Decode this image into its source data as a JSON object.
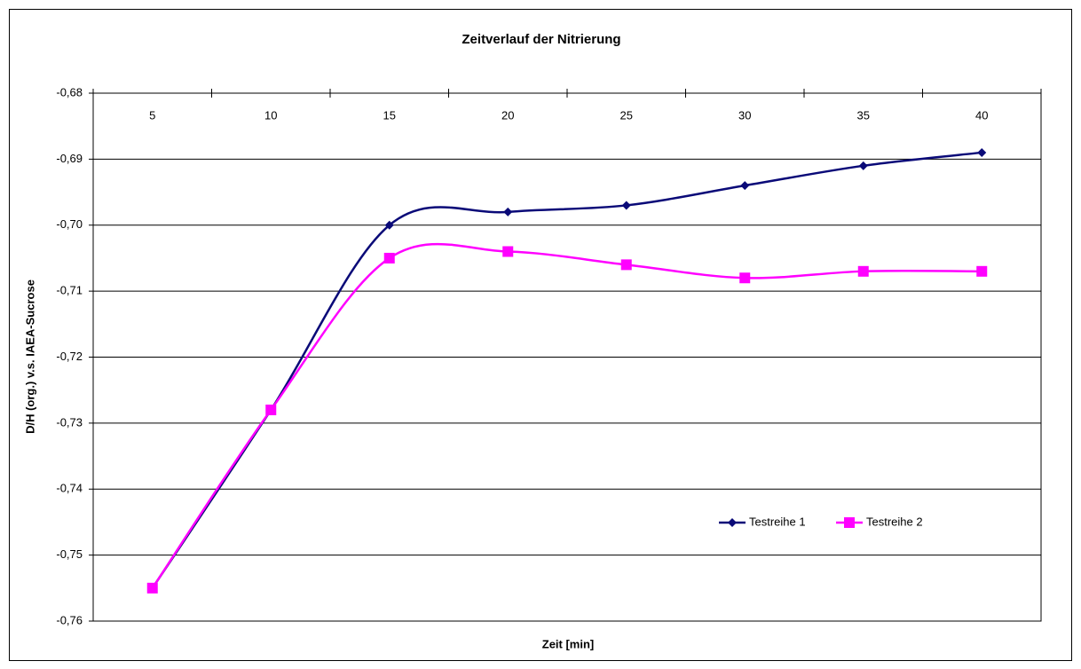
{
  "chart_data": {
    "type": "line",
    "title": "Zeitverlauf der Nitrierung",
    "xlabel": "Zeit [min]",
    "ylabel": "D/H (org.) v.s. IAEA-Sucrose",
    "categories": [
      "5",
      "10",
      "15",
      "20",
      "25",
      "30",
      "35",
      "40"
    ],
    "series": [
      {
        "name": "Testreihe 1",
        "color": "#0a0a78",
        "marker": "diamond",
        "values": [
          -0.755,
          -0.728,
          -0.7,
          -0.698,
          -0.697,
          -0.694,
          -0.691,
          -0.689
        ]
      },
      {
        "name": "Testreihe 2",
        "color": "#ff00ff",
        "marker": "square",
        "values": [
          -0.755,
          -0.728,
          -0.705,
          -0.704,
          -0.706,
          -0.708,
          -0.707,
          -0.707
        ]
      }
    ],
    "ylim": [
      -0.76,
      -0.68
    ],
    "yticks": [
      {
        "value": -0.68,
        "label": "-0,68"
      },
      {
        "value": -0.69,
        "label": "-0,69"
      },
      {
        "value": -0.7,
        "label": "-0,70"
      },
      {
        "value": -0.71,
        "label": "-0,71"
      },
      {
        "value": -0.72,
        "label": "-0,72"
      },
      {
        "value": -0.73,
        "label": "-0,73"
      },
      {
        "value": -0.74,
        "label": "-0,74"
      },
      {
        "value": -0.75,
        "label": "-0,75"
      },
      {
        "value": -0.76,
        "label": "-0,76"
      }
    ],
    "grid": true
  }
}
